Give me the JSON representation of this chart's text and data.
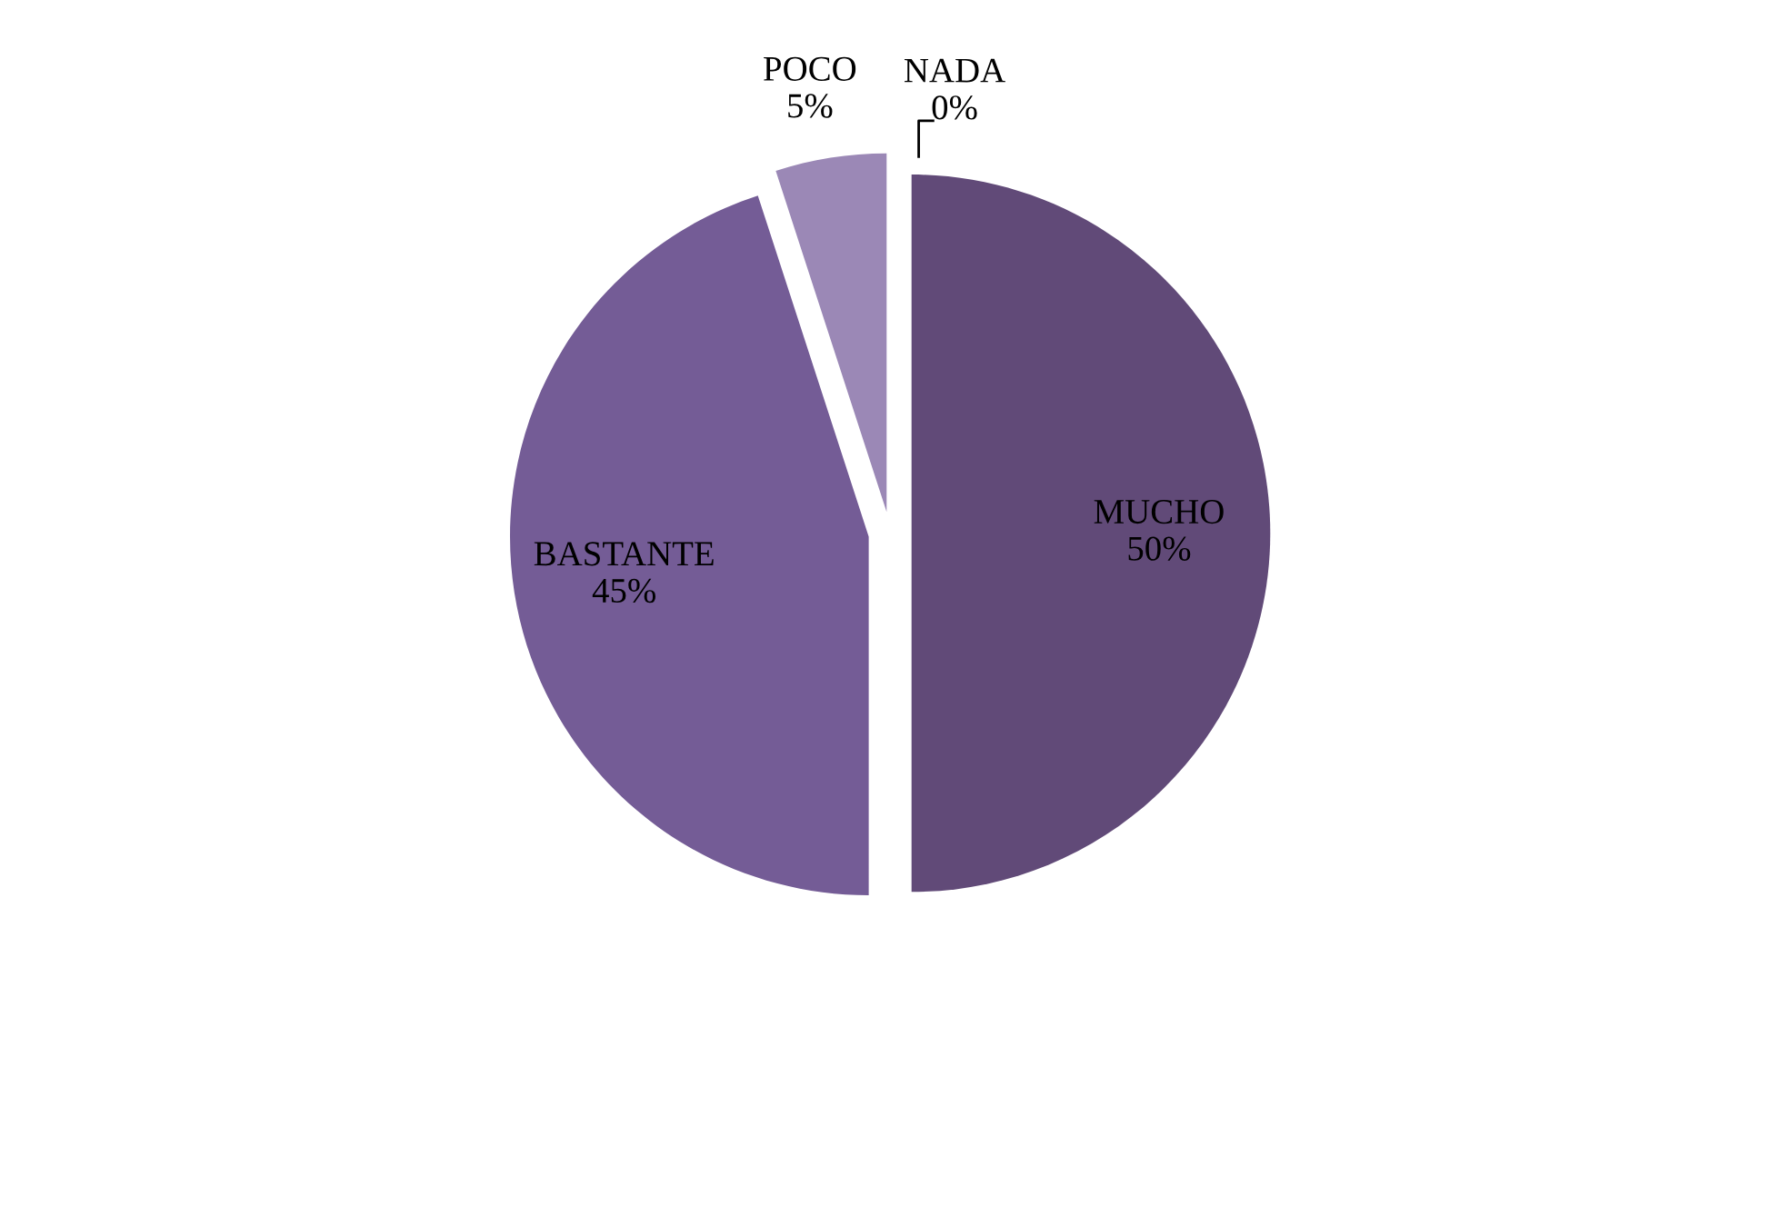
{
  "chart_data": {
    "type": "pie",
    "categories": [
      "MUCHO",
      "BASTANTE",
      "POCO",
      "NADA"
    ],
    "values": [
      50,
      45,
      5,
      0
    ],
    "colors": [
      "#614a78",
      "#745c96",
      "#9b88b6",
      "#b3a4c8"
    ],
    "value_labels": [
      "50%",
      "45%",
      "5%",
      "0%"
    ]
  }
}
